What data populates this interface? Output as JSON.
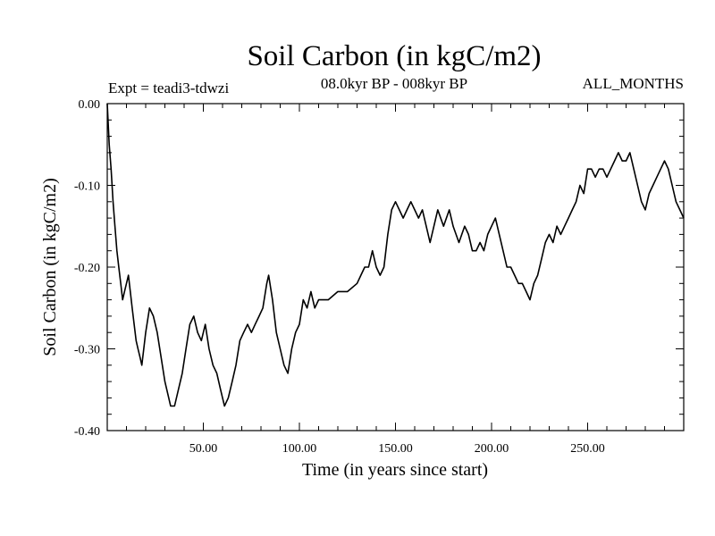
{
  "chart_data": {
    "type": "line",
    "title": "Soil Carbon (in kgC/m2)",
    "subtitle": "08.0kyr BP - 008kyr BP",
    "experiment_label": "Expt = teadi3-tdwzi",
    "months_label": "ALL_MONTHS",
    "xlabel": "Time (in years since start)",
    "ylabel": "Soil Carbon (in kgC/m2)",
    "xlim": [
      0,
      300
    ],
    "ylim": [
      -0.4,
      0.0
    ],
    "x_ticks": [
      {
        "value": 50,
        "label": "50.00"
      },
      {
        "value": 100,
        "label": "100.00"
      },
      {
        "value": 150,
        "label": "150.00"
      },
      {
        "value": 200,
        "label": "200.00"
      },
      {
        "value": 250,
        "label": "250.00"
      }
    ],
    "y_ticks": [
      {
        "value": 0.0,
        "label": "0.00"
      },
      {
        "value": -0.1,
        "label": "-0.10"
      },
      {
        "value": -0.2,
        "label": "-0.20"
      },
      {
        "value": -0.3,
        "label": "-0.30"
      },
      {
        "value": -0.4,
        "label": "-0.40"
      }
    ],
    "series": [
      {
        "name": "Soil Carbon",
        "x": [
          0,
          1,
          2,
          3,
          4,
          5,
          6,
          7,
          8,
          9,
          10,
          11,
          12,
          13,
          14,
          15,
          16,
          17,
          18,
          20,
          22,
          24,
          26,
          28,
          30,
          32,
          33,
          35,
          37,
          39,
          41,
          43,
          45,
          47,
          49,
          51,
          53,
          55,
          57,
          59,
          60,
          61,
          63,
          65,
          67,
          69,
          71,
          73,
          75,
          77,
          79,
          81,
          83,
          84,
          86,
          88,
          90,
          92,
          94,
          96,
          98,
          100,
          102,
          104,
          106,
          108,
          110,
          115,
          120,
          125,
          130,
          132,
          134,
          136,
          138,
          140,
          142,
          144,
          146,
          148,
          150,
          152,
          154,
          156,
          158,
          160,
          162,
          164,
          166,
          168,
          170,
          172,
          175,
          178,
          180,
          183,
          186,
          188,
          190,
          192,
          194,
          196,
          198,
          200,
          202,
          204,
          206,
          208,
          210,
          212,
          214,
          216,
          218,
          220,
          222,
          224,
          226,
          228,
          230,
          232,
          234,
          236,
          238,
          240,
          242,
          244,
          246,
          248,
          250,
          252,
          254,
          256,
          258,
          260,
          262,
          264,
          266,
          268,
          270,
          272,
          274,
          276,
          278,
          280,
          282,
          284,
          286,
          288,
          290,
          292,
          294,
          296,
          298,
          300
        ],
        "values": [
          0.0,
          -0.05,
          -0.08,
          -0.12,
          -0.15,
          -0.18,
          -0.2,
          -0.22,
          -0.24,
          -0.23,
          -0.22,
          -0.21,
          -0.23,
          -0.25,
          -0.27,
          -0.29,
          -0.3,
          -0.31,
          -0.32,
          -0.28,
          -0.25,
          -0.26,
          -0.28,
          -0.31,
          -0.34,
          -0.36,
          -0.37,
          -0.37,
          -0.35,
          -0.33,
          -0.3,
          -0.27,
          -0.26,
          -0.28,
          -0.29,
          -0.27,
          -0.3,
          -0.32,
          -0.33,
          -0.35,
          -0.36,
          -0.37,
          -0.36,
          -0.34,
          -0.32,
          -0.29,
          -0.28,
          -0.27,
          -0.28,
          -0.27,
          -0.26,
          -0.25,
          -0.22,
          -0.21,
          -0.24,
          -0.28,
          -0.3,
          -0.32,
          -0.33,
          -0.3,
          -0.28,
          -0.27,
          -0.24,
          -0.25,
          -0.23,
          -0.25,
          -0.24,
          -0.24,
          -0.23,
          -0.23,
          -0.22,
          -0.21,
          -0.2,
          -0.2,
          -0.18,
          -0.2,
          -0.21,
          -0.2,
          -0.16,
          -0.13,
          -0.12,
          -0.13,
          -0.14,
          -0.13,
          -0.12,
          -0.13,
          -0.14,
          -0.13,
          -0.15,
          -0.17,
          -0.15,
          -0.13,
          -0.15,
          -0.13,
          -0.15,
          -0.17,
          -0.15,
          -0.16,
          -0.18,
          -0.18,
          -0.17,
          -0.18,
          -0.16,
          -0.15,
          -0.14,
          -0.16,
          -0.18,
          -0.2,
          -0.2,
          -0.21,
          -0.22,
          -0.22,
          -0.23,
          -0.24,
          -0.22,
          -0.21,
          -0.19,
          -0.17,
          -0.16,
          -0.17,
          -0.15,
          -0.16,
          -0.15,
          -0.14,
          -0.13,
          -0.12,
          -0.1,
          -0.11,
          -0.08,
          -0.08,
          -0.09,
          -0.08,
          -0.08,
          -0.09,
          -0.08,
          -0.07,
          -0.06,
          -0.07,
          -0.07,
          -0.06,
          -0.08,
          -0.1,
          -0.12,
          -0.13,
          -0.11,
          -0.1,
          -0.09,
          -0.08,
          -0.07,
          -0.08,
          -0.1,
          -0.12,
          -0.13,
          -0.14
        ]
      }
    ]
  }
}
